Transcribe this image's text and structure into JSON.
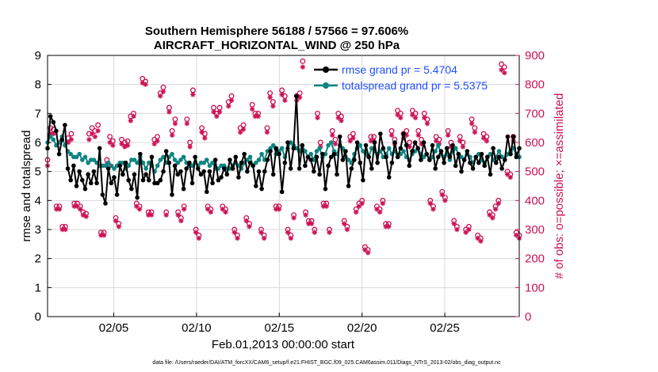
{
  "chart_data": {
    "type": "line",
    "title": "Southern Hemisphere 56188 / 57566 = 97.606%",
    "subtitle": "AIRCRAFT_HORIZONTAL_WIND @ 250 hPa",
    "xlabel": "Feb.01,2013 00:00:00 start",
    "ylabel": "rmse and totalspread",
    "ylabel_right": "# of obs: o=possible; ×=assimilated",
    "footer": "data file: /Users/raeder/DAI/ATM_forcXX/CAM6_setup/f.e21.FHIST_BGC.f09_025.CAM6assim.011/Diags_NTrS_2013-02/obs_diag_output.nc",
    "x_range": [
      1,
      29.5
    ],
    "ylim": [
      0,
      9
    ],
    "ylim_right": [
      0,
      900
    ],
    "yticks": [
      "0",
      "1",
      "2",
      "3",
      "4",
      "5",
      "6",
      "7",
      "8",
      "9"
    ],
    "yticks_right": [
      "0",
      "100",
      "200",
      "300",
      "400",
      "500",
      "600",
      "700",
      "800",
      "900"
    ],
    "xticks": [
      {
        "x": 5,
        "label": "02/05"
      },
      {
        "x": 10,
        "label": "02/10"
      },
      {
        "x": 15,
        "label": "02/15"
      },
      {
        "x": 20,
        "label": "02/20"
      },
      {
        "x": 25,
        "label": "02/25"
      }
    ],
    "legend": [
      "rmse grand pr = 5.4704",
      "totalspread grand pr = 5.5375"
    ],
    "colors": {
      "rmse": "#000000",
      "spread": "#0f8480",
      "obs": "#cc1155",
      "grid": "#d8d8d8"
    },
    "series": [
      {
        "name": "rmse",
        "values": [
          5.8,
          6.9,
          6.7,
          6.4,
          5.6,
          6.1,
          6.6,
          5.1,
          4.7,
          5.2,
          4.5,
          5.0,
          4.7,
          4.4,
          4.9,
          4.6,
          5.0,
          4.6,
          5.8,
          4.2,
          3.9,
          5.1,
          4.6,
          4.8,
          4.2,
          5.2,
          4.9,
          5.3,
          4.7,
          4.4,
          4.9,
          4.1,
          5.6,
          4.7,
          4.9,
          4.7,
          5.5,
          4.6,
          4.6,
          4.7,
          5.0,
          5.7,
          5.3,
          4.2,
          5.2,
          4.9,
          5.0,
          4.4,
          5.1,
          5.3,
          4.6,
          5.5,
          5.1,
          4.9,
          5.0,
          4.3,
          5.0,
          4.6,
          5.4,
          4.7,
          4.8,
          5.1,
          4.9,
          5.4,
          5.1,
          5.5,
          4.8,
          5.3,
          5.6,
          5.0,
          5.3,
          5.2,
          4.5,
          5.0,
          4.4,
          5.0,
          5.4,
          5.7,
          4.9,
          5.8,
          5.6,
          4.3,
          5.3,
          6.0,
          5.1,
          5.8,
          7.6,
          5.1,
          5.9,
          5.2,
          5.5,
          5.4,
          5.0,
          5.5,
          4.9,
          5.6,
          4.4,
          5.2,
          5.5,
          5.6,
          4.9,
          6.2,
          5.4,
          5.7,
          4.5,
          5.1,
          5.4,
          6.0,
          5.3,
          4.7,
          5.9,
          5.5,
          5.1,
          6.0,
          5.3,
          6.3,
          5.8,
          5.5,
          4.8,
          5.3,
          6.0,
          5.5,
          5.8,
          6.3,
          5.9,
          5.2,
          5.7,
          6.0,
          5.8,
          5.4,
          6.0,
          5.6,
          5.4,
          5.9,
          5.1,
          5.5,
          5.7,
          5.3,
          5.8,
          5.5,
          5.9,
          5.2,
          5.6,
          5.0,
          5.4,
          5.7,
          5.3,
          5.1,
          5.5,
          5.3,
          5.6,
          5.2,
          5.5,
          4.9,
          5.8,
          5.3,
          5.5,
          5.1,
          5.4,
          6.2,
          5.6,
          6.2,
          5.5,
          5.8
        ]
      },
      {
        "name": "totalspread",
        "values": [
          6.0,
          6.2,
          6.1,
          5.9,
          6.0,
          6.2,
          5.9,
          5.7,
          5.6,
          5.5,
          5.5,
          5.6,
          5.4,
          5.5,
          5.3,
          5.4,
          5.4,
          5.3,
          5.2,
          5.2,
          5.2,
          5.3,
          5.2,
          5.1,
          5.2,
          5.3,
          5.3,
          5.1,
          5.2,
          5.4,
          5.4,
          5.3,
          5.5,
          5.3,
          5.1,
          5.3,
          5.2,
          5.0,
          5.2,
          5.4,
          5.5,
          5.3,
          5.5,
          5.6,
          5.4,
          5.3,
          5.4,
          5.5,
          5.3,
          5.2,
          5.2,
          5.3,
          5.2,
          5.3,
          5.3,
          5.4,
          5.2,
          5.3,
          5.1,
          5.1,
          5.2,
          5.2,
          5.1,
          5.1,
          5.2,
          5.3,
          5.2,
          5.1,
          5.3,
          5.4,
          5.5,
          5.2,
          5.3,
          5.4,
          5.6,
          5.4,
          5.7,
          5.8,
          5.9,
          5.6,
          5.7,
          5.8,
          5.5,
          5.8,
          6.0,
          5.9,
          5.8,
          5.7,
          5.9,
          5.7,
          5.5,
          5.6,
          5.4,
          5.7,
          5.8,
          5.5,
          5.6,
          5.9,
          6.0,
          5.7,
          5.6,
          5.9,
          5.8,
          5.5,
          5.4,
          5.3,
          5.6,
          5.8,
          5.9,
          5.7,
          5.6,
          5.5,
          5.8,
          5.7,
          5.6,
          5.7,
          5.5,
          5.6,
          5.8,
          5.6,
          5.7,
          5.5,
          5.6,
          5.7,
          5.5,
          5.4,
          5.6,
          5.7,
          5.8,
          5.6,
          5.5,
          5.6,
          5.4,
          5.5,
          5.7,
          5.9,
          5.6,
          5.5,
          5.6,
          5.4,
          5.7,
          5.8,
          5.6,
          5.5,
          5.4,
          5.6,
          5.5,
          5.3,
          5.5,
          5.6,
          5.4,
          5.3,
          5.5,
          5.6,
          5.4,
          5.5,
          5.7,
          5.5,
          5.4,
          5.6,
          5.7,
          5.8,
          5.6,
          5.5
        ]
      },
      {
        "name": "obs_possible",
        "values": [
          540,
          650,
          645,
          380,
          380,
          310,
          310,
          615,
          630,
          390,
          390,
          380,
          360,
          355,
          630,
          650,
          640,
          660,
          290,
          290,
          540,
          620,
          605,
          340,
          320,
          610,
          600,
          605,
          690,
          700,
          390,
          380,
          820,
          810,
          360,
          360,
          610,
          620,
          770,
          790,
          360,
          720,
          640,
          680,
          360,
          340,
          380,
          680,
          600,
          780,
          300,
          280,
          650,
          630,
          380,
          370,
          720,
          700,
          720,
          380,
          370,
          740,
          760,
          300,
          280,
          650,
          660,
          340,
          320,
          730,
          700,
          700,
          300,
          280,
          650,
          770,
          740,
          380,
          380,
          780,
          760,
          300,
          280,
          350,
          760,
          770,
          880,
          360,
          330,
          330,
          300,
          700,
          600,
          390,
          390,
          300,
          640,
          610,
          700,
          690,
          330,
          310,
          620,
          630,
          370,
          390,
          400,
          240,
          230,
          620,
          620,
          380,
          370,
          400,
          320,
          320,
          640,
          610,
          710,
          700,
          630,
          640,
          600,
          710,
          700,
          640,
          610,
          700,
          680,
          400,
          380,
          620,
          610,
          430,
          410,
          640,
          600,
          330,
          310,
          620,
          600,
          300,
          310,
          680,
          650,
          280,
          270,
          630,
          620,
          360,
          350,
          380,
          400,
          870,
          860,
          500,
          490,
          620,
          290,
          280
        ]
      },
      {
        "name": "obs_assimilated",
        "values": [
          520,
          630,
          630,
          370,
          370,
          300,
          300,
          600,
          610,
          380,
          380,
          370,
          350,
          345,
          610,
          630,
          620,
          640,
          280,
          280,
          525,
          600,
          590,
          330,
          310,
          595,
          585,
          590,
          675,
          690,
          380,
          370,
          805,
          800,
          350,
          350,
          595,
          605,
          760,
          775,
          350,
          705,
          625,
          665,
          350,
          330,
          370,
          665,
          585,
          765,
          290,
          270,
          635,
          615,
          370,
          360,
          705,
          690,
          705,
          370,
          360,
          725,
          745,
          290,
          270,
          635,
          645,
          330,
          310,
          715,
          690,
          690,
          290,
          270,
          635,
          755,
          725,
          370,
          370,
          765,
          745,
          290,
          270,
          340,
          745,
          755,
          860,
          350,
          320,
          320,
          290,
          685,
          585,
          380,
          380,
          290,
          625,
          595,
          685,
          675,
          320,
          300,
          605,
          615,
          360,
          380,
          390,
          230,
          220,
          605,
          605,
          370,
          360,
          390,
          310,
          310,
          625,
          595,
          695,
          685,
          615,
          625,
          585,
          695,
          685,
          625,
          595,
          685,
          665,
          390,
          370,
          605,
          595,
          420,
          400,
          625,
          585,
          320,
          300,
          605,
          585,
          290,
          300,
          665,
          635,
          270,
          260,
          615,
          605,
          350,
          340,
          370,
          390,
          850,
          840,
          490,
          480,
          605,
          280,
          270
        ]
      }
    ]
  }
}
